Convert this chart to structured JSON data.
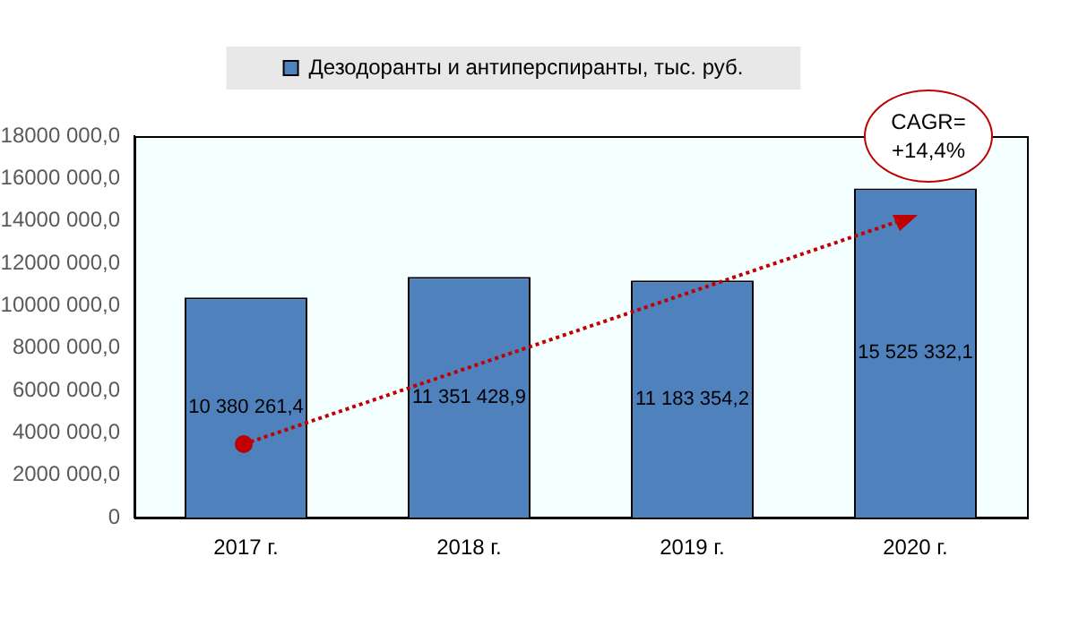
{
  "chart_data": {
    "type": "bar",
    "categories": [
      "2017 г.",
      "2018 г.",
      "2019 г.",
      "2020 г."
    ],
    "series": [
      {
        "name": "Дезодоранты и антиперспиранты, тыс. руб.",
        "color": "#4f81bd",
        "values": [
          10380261.4,
          11351428.9,
          11183354.2,
          15525332.1
        ],
        "value_labels": [
          "10 380 261,4",
          "11 351 428,9",
          "11 183 354,2",
          "15 525 332,1"
        ]
      }
    ],
    "ylim": [
      0,
      18000000
    ],
    "yticks": [
      0,
      {
        "value": 2000000,
        "label": "2000 000,0"
      },
      {
        "value": 4000000,
        "label": "4000 000,0"
      },
      {
        "value": 6000000,
        "label": "6000 000,0"
      },
      {
        "value": 8000000,
        "label": "8000 000,0"
      },
      {
        "value": 10000000,
        "label": "10000 000,0"
      },
      {
        "value": 12000000,
        "label": "12000 000,0"
      },
      {
        "value": 14000000,
        "label": "14000 000,0"
      },
      {
        "value": 16000000,
        "label": "16000 000,0"
      },
      {
        "value": 18000000,
        "label": "18000 000,0"
      }
    ],
    "grid": false,
    "legend": "top",
    "annotations": [
      "CAGR=\n+14,4%"
    ]
  }
}
